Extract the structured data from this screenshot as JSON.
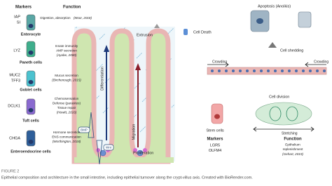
{
  "left": {
    "markers_header": "Markers",
    "function_header": "Function",
    "cells": [
      {
        "markers": [
          "IAP",
          "SI"
        ],
        "function": [
          "Digestion, absorption"
        ],
        "reference": "(Moor, 2018)",
        "name": "Enterocyte"
      },
      {
        "markers": [
          "LYZ"
        ],
        "function": [
          "Innate immunity",
          "AMP secretion"
        ],
        "reference": "(Ayabe, 2000)",
        "name": "Paneth cells"
      },
      {
        "markers": [
          "MUC2",
          "TFF3"
        ],
        "function": [
          "Mucus secretion"
        ],
        "reference": "(Birchenough, 2015)",
        "name": "Goblet cells"
      },
      {
        "markers": [
          "DCLK1"
        ],
        "function": [
          "Chemosensation",
          "Defense (parasites)",
          "Tissue repair"
        ],
        "reference": "(Howitt, 2016)",
        "name": "Tuft cells"
      },
      {
        "markers": [
          "CHGA"
        ],
        "function": [
          "Hormone secretion",
          "ENS communication"
        ],
        "reference": "(Worthington, 2018)",
        "name": "Enteroendocrine cells"
      }
    ]
  },
  "center": {
    "extrusion": "Extrusion",
    "cell_death": "Cell Death",
    "differentiation": "Differentiation",
    "migration": "Migration",
    "proliferation": "Proliferation",
    "bmp": "BMP",
    "wnt": "Wnt"
  },
  "right": {
    "apoptosis": "Apoptosis (Anoikis)",
    "cell_shedding": "Cell shedding",
    "crowding_left": "Crowding",
    "crowding_right": "Crowding",
    "cell_division": "Cell division",
    "stretching": "Stretching",
    "stem_cells": "Stem cells",
    "markers_header": "Markers",
    "markers": [
      "LGR5",
      "OLFM4"
    ],
    "function_header": "Function",
    "function": [
      "Epithelium",
      "replenishment"
    ],
    "reference": "(Gehart, 2019)"
  },
  "caption": {
    "label": "FIGURE 2",
    "text": "Epithelial composition and architecture in the small intestine, including epithelial turnover along the crypt-villus axis. Created with BioRender.com."
  }
}
